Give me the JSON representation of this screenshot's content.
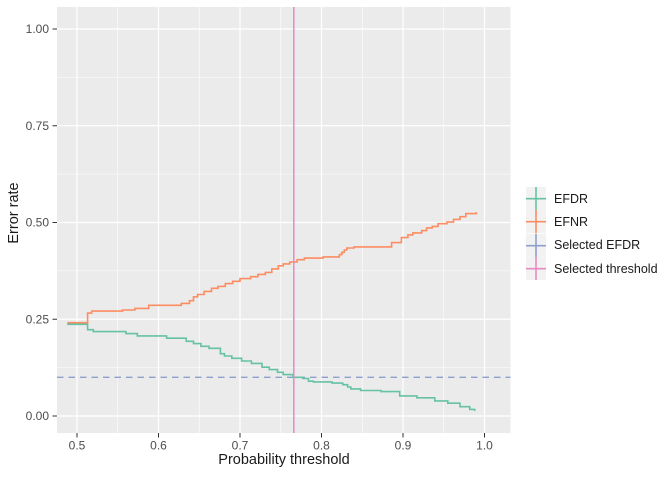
{
  "chart_data": {
    "type": "line",
    "subtype": "step",
    "title": "",
    "xlabel": "Probability threshold",
    "ylabel": "Error rate",
    "x_ticks": [
      0.5,
      0.6,
      0.7,
      0.8,
      0.9,
      1.0
    ],
    "x_tick_labels": [
      "0.5",
      "0.6",
      "0.7",
      "0.8",
      "0.9",
      "1.0"
    ],
    "y_ticks": [
      0.0,
      0.25,
      0.5,
      0.75,
      1.0
    ],
    "y_tick_labels": [
      "0.00",
      "0.25",
      "0.50",
      "0.75",
      "1.00"
    ],
    "xlim": [
      0.475,
      1.031
    ],
    "ylim": [
      -0.047,
      1.057
    ],
    "grid": "major and minor white gridlines on grey panel",
    "legend_position": "right",
    "panel_bg": "#EBEBEB",
    "grid_major_color": "#FFFFFF",
    "grid_minor_color": "#FFFFFF",
    "tick_label_color": "#4D4D4D",
    "tick_mark_color": "#333333",
    "series": [
      {
        "name": "EFDR",
        "color": "#66C2A5",
        "points": [
          [
            0.488,
            0.237
          ],
          [
            0.513,
            0.223
          ],
          [
            0.52,
            0.218
          ],
          [
            0.56,
            0.213
          ],
          [
            0.574,
            0.207
          ],
          [
            0.61,
            0.201
          ],
          [
            0.634,
            0.193
          ],
          [
            0.643,
            0.187
          ],
          [
            0.652,
            0.18
          ],
          [
            0.662,
            0.175
          ],
          [
            0.676,
            0.161
          ],
          [
            0.681,
            0.155
          ],
          [
            0.69,
            0.149
          ],
          [
            0.702,
            0.142
          ],
          [
            0.714,
            0.136
          ],
          [
            0.727,
            0.126
          ],
          [
            0.736,
            0.12
          ],
          [
            0.746,
            0.113
          ],
          [
            0.753,
            0.107
          ],
          [
            0.765,
            0.1
          ],
          [
            0.777,
            0.097
          ],
          [
            0.784,
            0.09
          ],
          [
            0.79,
            0.088
          ],
          [
            0.813,
            0.085
          ],
          [
            0.826,
            0.081
          ],
          [
            0.832,
            0.075
          ],
          [
            0.836,
            0.07
          ],
          [
            0.848,
            0.066
          ],
          [
            0.873,
            0.063
          ],
          [
            0.896,
            0.052
          ],
          [
            0.917,
            0.047
          ],
          [
            0.939,
            0.039
          ],
          [
            0.955,
            0.033
          ],
          [
            0.97,
            0.024
          ],
          [
            0.982,
            0.017
          ],
          [
            0.988,
            0.013
          ]
        ]
      },
      {
        "name": "EFNR",
        "color": "#FC8D62",
        "points": [
          [
            0.488,
            0.241
          ],
          [
            0.513,
            0.266
          ],
          [
            0.518,
            0.271
          ],
          [
            0.556,
            0.274
          ],
          [
            0.571,
            0.278
          ],
          [
            0.588,
            0.286
          ],
          [
            0.628,
            0.291
          ],
          [
            0.638,
            0.298
          ],
          [
            0.643,
            0.308
          ],
          [
            0.648,
            0.314
          ],
          [
            0.656,
            0.322
          ],
          [
            0.665,
            0.33
          ],
          [
            0.673,
            0.335
          ],
          [
            0.682,
            0.342
          ],
          [
            0.691,
            0.348
          ],
          [
            0.7,
            0.355
          ],
          [
            0.713,
            0.36
          ],
          [
            0.722,
            0.366
          ],
          [
            0.731,
            0.371
          ],
          [
            0.739,
            0.38
          ],
          [
            0.747,
            0.388
          ],
          [
            0.753,
            0.393
          ],
          [
            0.761,
            0.398
          ],
          [
            0.77,
            0.404
          ],
          [
            0.779,
            0.408
          ],
          [
            0.802,
            0.411
          ],
          [
            0.822,
            0.417
          ],
          [
            0.825,
            0.423
          ],
          [
            0.828,
            0.429
          ],
          [
            0.831,
            0.434
          ],
          [
            0.84,
            0.437
          ],
          [
            0.886,
            0.448
          ],
          [
            0.898,
            0.461
          ],
          [
            0.906,
            0.468
          ],
          [
            0.912,
            0.473
          ],
          [
            0.923,
            0.479
          ],
          [
            0.929,
            0.486
          ],
          [
            0.936,
            0.49
          ],
          [
            0.943,
            0.497
          ],
          [
            0.954,
            0.501
          ],
          [
            0.962,
            0.508
          ],
          [
            0.97,
            0.515
          ],
          [
            0.977,
            0.523
          ],
          [
            0.99,
            0.527
          ]
        ]
      }
    ],
    "ref_lines": [
      {
        "name": "Selected EFDR",
        "color": "#8DA0CB",
        "orientation": "horizontal",
        "value": 0.1,
        "dashed": true
      },
      {
        "name": "Selected threshold",
        "color": "#E78AC3",
        "orientation": "vertical",
        "value": 0.766,
        "dashed": false
      }
    ],
    "legend": {
      "key_bg": "#F2F2F2",
      "items": [
        {
          "label": "EFDR",
          "color": "#66C2A5"
        },
        {
          "label": "EFNR",
          "color": "#FC8D62"
        },
        {
          "label": "Selected EFDR",
          "color": "#8DA0CB"
        },
        {
          "label": "Selected threshold",
          "color": "#E78AC3"
        }
      ]
    }
  }
}
